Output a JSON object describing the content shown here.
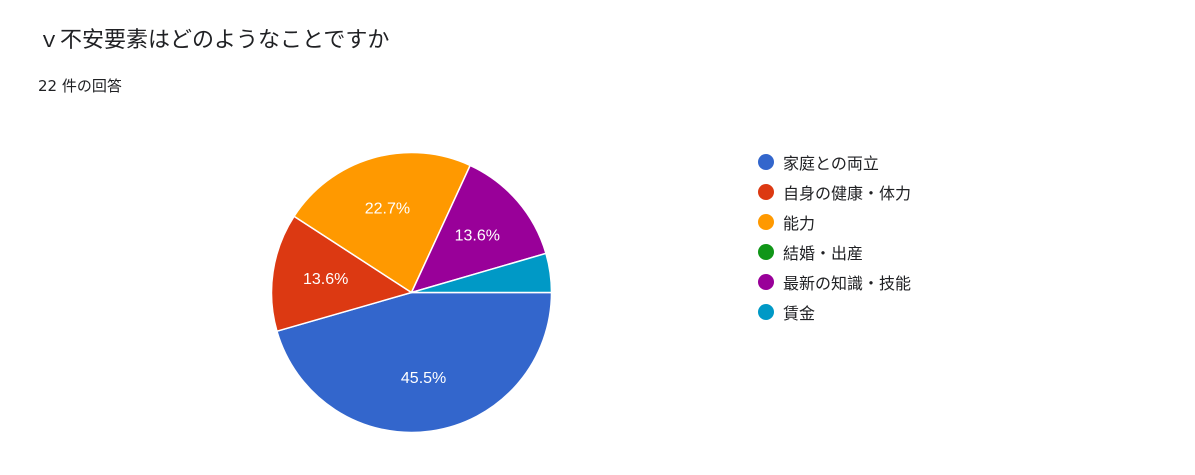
{
  "header": {
    "title": "ｖ不安要素はどのようなことですか",
    "response_count": "22 件の回答"
  },
  "chart_data": {
    "type": "pie",
    "labels": [
      "家庭との両立",
      "自身の健康・体力",
      "能力",
      "結婚・出産",
      "最新の知識・技能",
      "賃金"
    ],
    "values": [
      45.5,
      13.6,
      22.7,
      0,
      13.6,
      4.5
    ],
    "data_labels": [
      "45.5%",
      "13.6%",
      "22.7%",
      "",
      "13.6%",
      ""
    ],
    "colors": [
      "#3366cc",
      "#dc3912",
      "#ff9900",
      "#109618",
      "#990099",
      "#0099c6"
    ],
    "start_angle": "3 o'clock, clockwise",
    "legend_position": "right"
  }
}
